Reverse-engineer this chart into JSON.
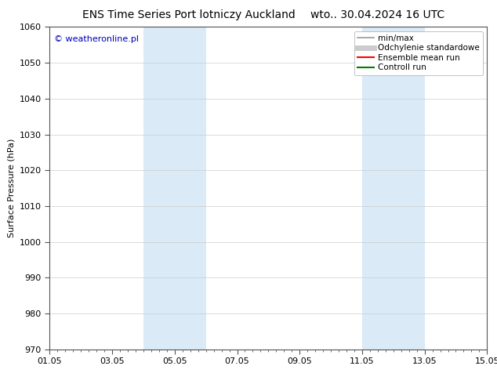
{
  "title_left": "ENS Time Series Port lotniczy Auckland",
  "title_right": "wto.. 30.04.2024 16 UTC",
  "ylabel": "Surface Pressure (hPa)",
  "ylim": [
    970,
    1060
  ],
  "yticks": [
    970,
    980,
    990,
    1000,
    1010,
    1020,
    1030,
    1040,
    1050,
    1060
  ],
  "xlim": [
    0,
    14
  ],
  "xtick_labels": [
    "01.05",
    "03.05",
    "05.05",
    "07.05",
    "09.05",
    "11.05",
    "13.05",
    "15.05"
  ],
  "xtick_positions": [
    0,
    2,
    4,
    6,
    8,
    10,
    12,
    14
  ],
  "shaded_bands": [
    {
      "xmin": 3.0,
      "xmax": 5.0,
      "color": "#daeaf7"
    },
    {
      "xmin": 10.0,
      "xmax": 12.0,
      "color": "#daeaf7"
    }
  ],
  "watermark": "© weatheronline.pl",
  "watermark_color": "#0000bb",
  "background_color": "#ffffff",
  "legend_items": [
    {
      "label": "min/max",
      "color": "#999999",
      "lw": 1.2
    },
    {
      "label": "Odchylenie standardowe",
      "color": "#cccccc",
      "lw": 5
    },
    {
      "label": "Ensemble mean run",
      "color": "#ff0000",
      "lw": 1.5
    },
    {
      "label": "Controll run",
      "color": "#008000",
      "lw": 1.5
    }
  ],
  "title_fontsize": 10,
  "ylabel_fontsize": 8,
  "tick_fontsize": 8,
  "legend_fontsize": 7.5,
  "watermark_fontsize": 8
}
